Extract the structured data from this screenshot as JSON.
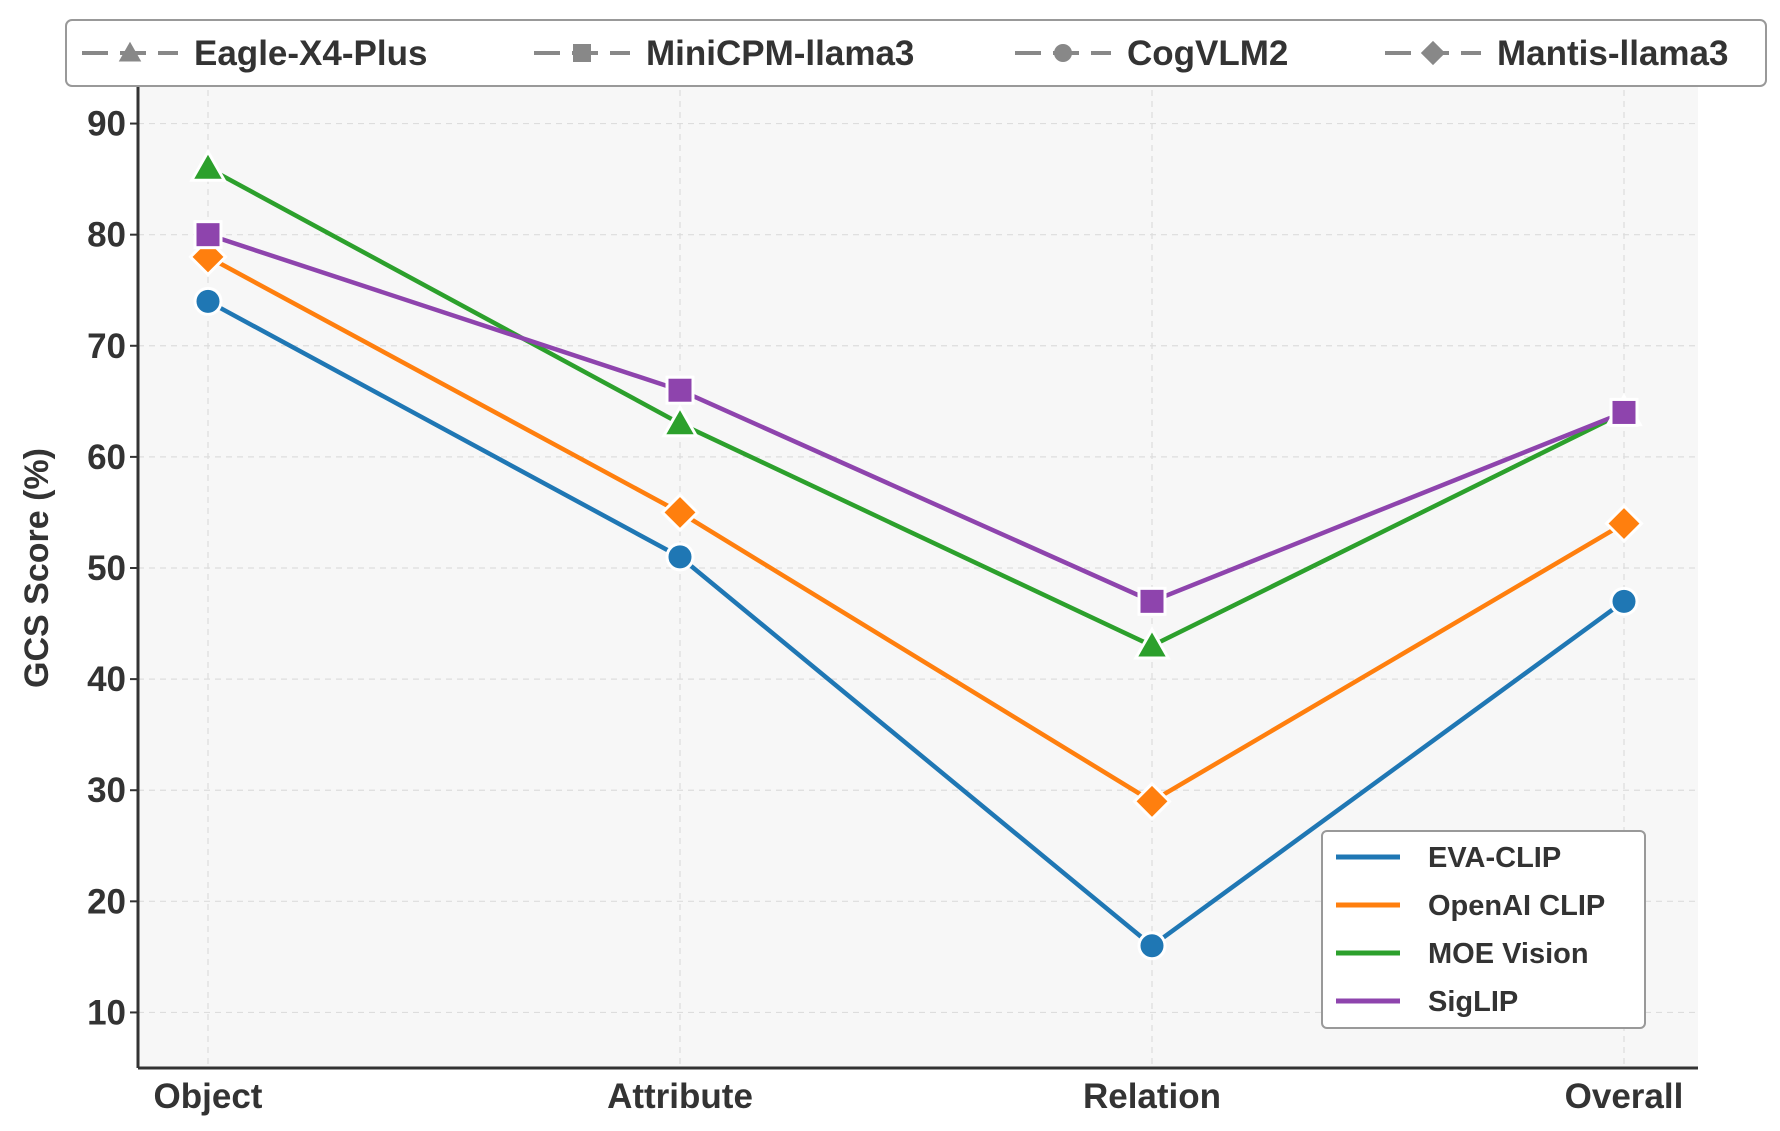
{
  "chart_data": {
    "type": "line",
    "title": "",
    "xlabel": "",
    "ylabel": "GCS Score (%)",
    "categories": [
      "Object",
      "Attribute",
      "Relation",
      "Overall"
    ],
    "ylim": [
      5,
      95
    ],
    "yticks": [
      10,
      20,
      30,
      40,
      50,
      60,
      70,
      80,
      90
    ],
    "grid": true,
    "series": [
      {
        "name": "EVA-CLIP",
        "color": "#1f77b4",
        "values": [
          74,
          51,
          16,
          47
        ]
      },
      {
        "name": "OpenAI CLIP",
        "color": "#ff7f0e",
        "values": [
          78,
          55,
          29,
          54
        ]
      },
      {
        "name": "MOE Vision",
        "color": "#2ca02c",
        "values": [
          86,
          63,
          43,
          64
        ]
      },
      {
        "name": "SigLIP",
        "color": "#8e44ad",
        "values": [
          80,
          66,
          47,
          64
        ]
      }
    ],
    "marker_legend": [
      {
        "name": "Eagle-X4-Plus",
        "marker": "triangle",
        "color": "#888888"
      },
      {
        "name": "MiniCPM-llama3",
        "marker": "square",
        "color": "#888888"
      },
      {
        "name": "CogVLM2",
        "marker": "circle",
        "color": "#888888"
      },
      {
        "name": "Mantis-llama3",
        "marker": "diamond",
        "color": "#888888"
      }
    ],
    "series_markers": [
      "circle",
      "diamond",
      "triangle",
      "square"
    ],
    "legend_placement": {
      "markers": "top",
      "series": "bottom-right"
    }
  }
}
